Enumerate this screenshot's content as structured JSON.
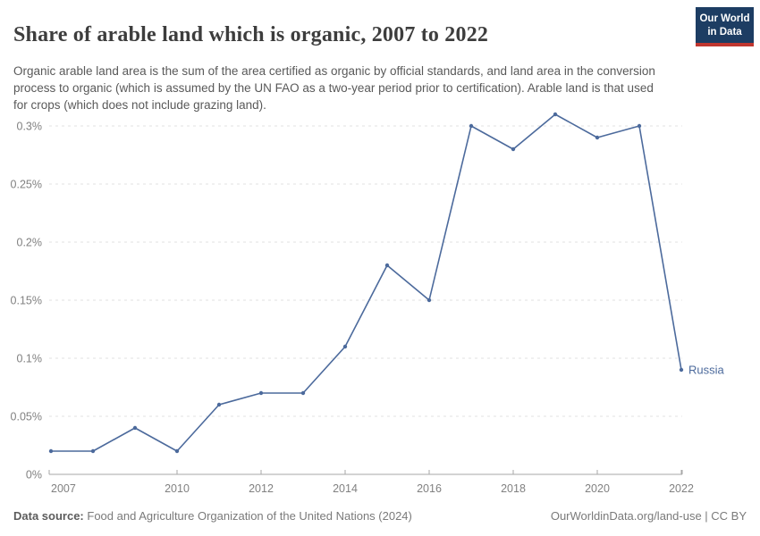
{
  "header": {
    "title": "Share of arable land which is organic, 2007 to 2022",
    "logo_line1": "Our World",
    "logo_line2": "in Data"
  },
  "subtitle": "Organic arable land area is the sum of the area certified as organic by official standards, and land area in the conversion process to organic (which is assumed by the UN FAO as a two-year period prior to certification). Arable land is that used for crops (which does not include grazing land).",
  "chart_data": {
    "type": "line",
    "title": "Share of arable land which is organic, 2007 to 2022",
    "xlabel": "",
    "ylabel": "",
    "unit": "%",
    "x": [
      2007,
      2008,
      2009,
      2010,
      2011,
      2012,
      2013,
      2014,
      2015,
      2016,
      2017,
      2018,
      2019,
      2020,
      2021,
      2022
    ],
    "series": [
      {
        "name": "Russia",
        "color": "#4c6a9c",
        "values": [
          0.02,
          0.02,
          0.04,
          0.02,
          0.06,
          0.07,
          0.07,
          0.11,
          0.18,
          0.15,
          0.3,
          0.28,
          0.31,
          0.29,
          0.3,
          0.09
        ]
      }
    ],
    "ylim": [
      0,
      0.31
    ],
    "yticks": [
      0,
      0.05,
      0.1,
      0.15,
      0.2,
      0.25,
      0.3
    ],
    "ytick_labels": [
      "0%",
      "0.05%",
      "0.1%",
      "0.15%",
      "0.2%",
      "0.25%",
      "0.3%"
    ],
    "xticks": [
      2007,
      2010,
      2012,
      2014,
      2016,
      2018,
      2020,
      2022
    ],
    "grid": "horizontal-dashed",
    "legend": "end-of-line entity label"
  },
  "footer": {
    "source_label": "Data source:",
    "source_text": "Food and Agriculture Organization of the United Nations (2024)",
    "credit_text": "OurWorldinData.org/land-use | CC BY"
  },
  "colors": {
    "line": "#4c6a9c",
    "entity_label": "#4c6a9c",
    "gridline": "#e1e1e1",
    "axis_line": "#a7a7a7",
    "tick_label": "#818181",
    "title": "#3d3d3d",
    "subtitle": "#595959",
    "logo_bg": "#1d3d63",
    "logo_red": "#c0362f"
  }
}
